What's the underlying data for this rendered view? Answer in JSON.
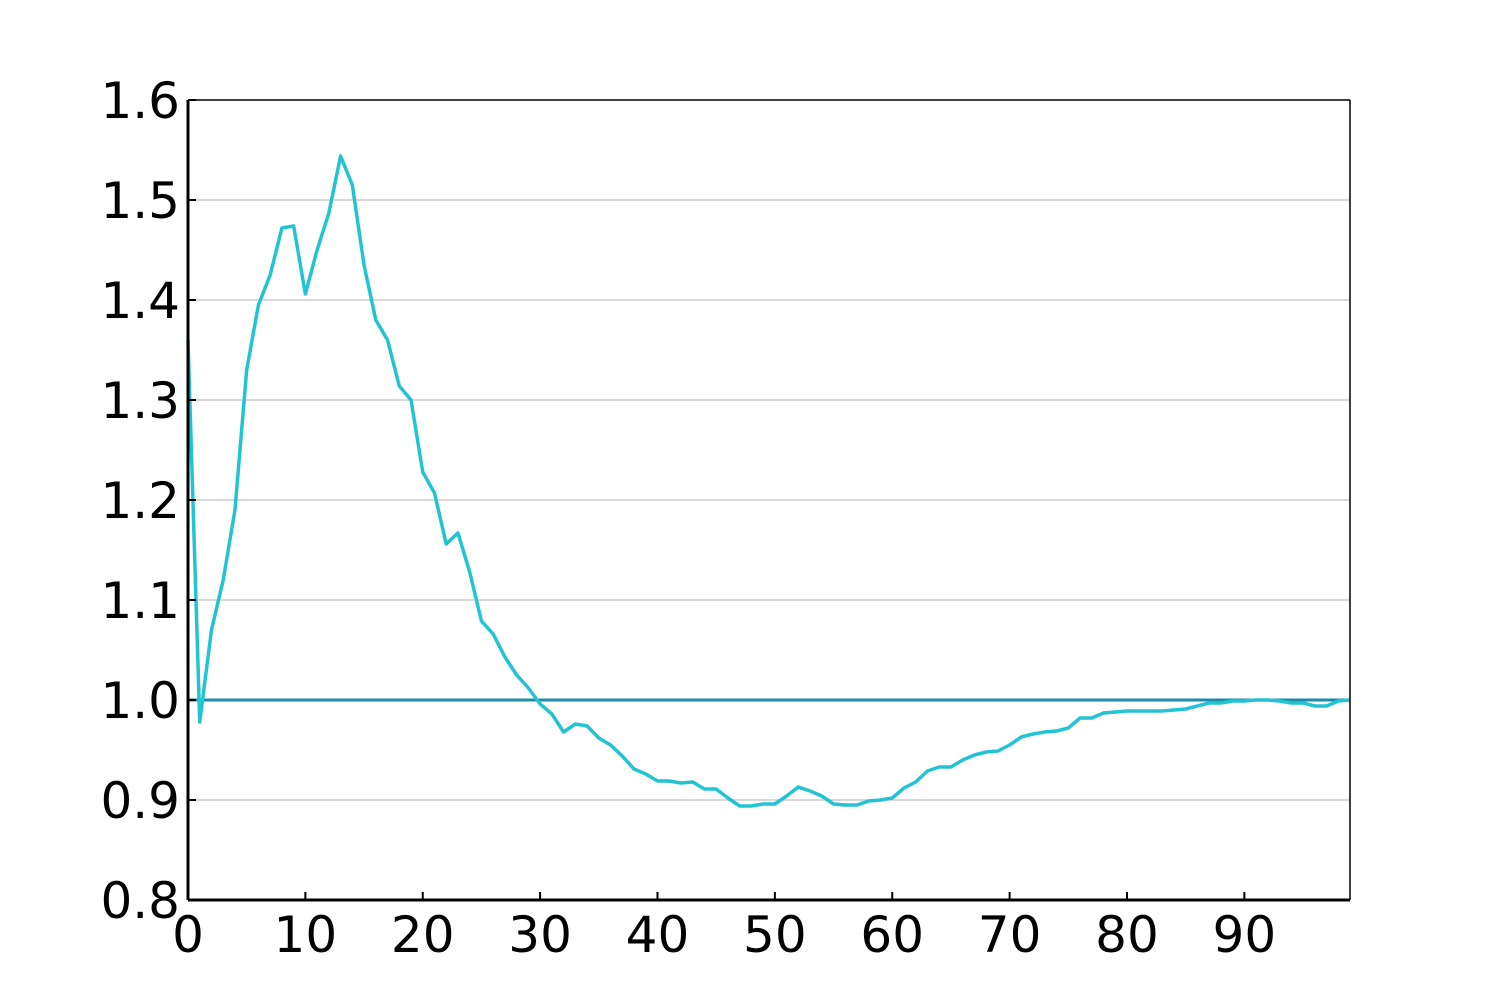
{
  "chart_data": {
    "type": "line",
    "title": "",
    "xlabel": "",
    "ylabel": "",
    "xlim": [
      0,
      99
    ],
    "ylim": [
      0.8,
      1.6
    ],
    "x_ticks": [
      0,
      10,
      20,
      30,
      40,
      50,
      60,
      70,
      80,
      90
    ],
    "x_tick_labels": [
      "0",
      "10",
      "20",
      "30",
      "40",
      "50",
      "60",
      "70",
      "80",
      "90"
    ],
    "y_ticks": [
      0.8,
      0.9,
      1.0,
      1.1,
      1.2,
      1.3,
      1.4,
      1.5,
      1.6
    ],
    "y_tick_labels": [
      "0.8",
      "0.9",
      "1.0",
      "1.1",
      "1.2",
      "1.3",
      "1.4",
      "1.5",
      "1.6"
    ],
    "grid": "horizontal",
    "reference_line": {
      "y": 1.0,
      "color": "#1a8ca8"
    },
    "series": [
      {
        "color": "#22c4d4",
        "x": [
          0,
          1,
          2,
          3,
          4,
          5,
          6,
          7,
          8,
          9,
          10,
          11,
          12,
          13,
          14,
          15,
          16,
          17,
          18,
          19,
          20,
          21,
          22,
          23,
          24,
          25,
          26,
          27,
          28,
          29,
          30,
          31,
          32,
          33,
          34,
          35,
          36,
          37,
          38,
          39,
          40,
          41,
          42,
          43,
          44,
          45,
          46,
          47,
          48,
          49,
          50,
          51,
          52,
          53,
          54,
          55,
          56,
          57,
          58,
          59,
          60,
          61,
          62,
          63,
          64,
          65,
          66,
          67,
          68,
          69,
          70,
          71,
          72,
          73,
          74,
          75,
          76,
          77,
          78,
          79,
          80,
          81,
          82,
          83,
          84,
          85,
          86,
          87,
          88,
          89,
          90,
          91,
          92,
          93,
          94,
          95,
          96,
          97,
          98,
          99
        ],
        "values": [
          1.36,
          0.978,
          1.07,
          1.12,
          1.19,
          1.33,
          1.395,
          1.425,
          1.472,
          1.474,
          1.406,
          1.45,
          1.487,
          1.544,
          1.515,
          1.435,
          1.38,
          1.36,
          1.314,
          1.3,
          1.228,
          1.207,
          1.156,
          1.167,
          1.128,
          1.079,
          1.066,
          1.043,
          1.025,
          1.012,
          0.996,
          0.986,
          0.968,
          0.976,
          0.974,
          0.962,
          0.955,
          0.944,
          0.931,
          0.926,
          0.919,
          0.919,
          0.917,
          0.918,
          0.911,
          0.911,
          0.902,
          0.894,
          0.894,
          0.896,
          0.896,
          0.904,
          0.913,
          0.909,
          0.904,
          0.896,
          0.895,
          0.895,
          0.899,
          0.9,
          0.902,
          0.912,
          0.918,
          0.929,
          0.933,
          0.933,
          0.94,
          0.945,
          0.948,
          0.949,
          0.955,
          0.963,
          0.966,
          0.968,
          0.969,
          0.972,
          0.982,
          0.982,
          0.987,
          0.988,
          0.989,
          0.989,
          0.989,
          0.989,
          0.99,
          0.991,
          0.994,
          0.997,
          0.997,
          0.999,
          0.999,
          1.0,
          1.0,
          0.999,
          0.997,
          0.997,
          0.994,
          0.994,
          0.999,
          1.0
        ]
      }
    ]
  }
}
